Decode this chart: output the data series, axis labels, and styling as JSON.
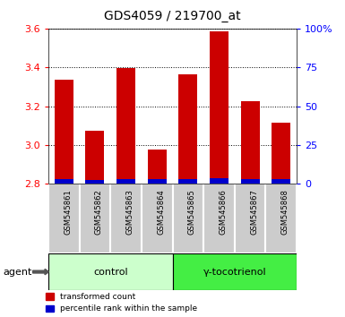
{
  "title": "GDS4059 / 219700_at",
  "samples": [
    "GSM545861",
    "GSM545862",
    "GSM545863",
    "GSM545864",
    "GSM545865",
    "GSM545866",
    "GSM545867",
    "GSM545868"
  ],
  "red_values": [
    3.335,
    3.075,
    3.395,
    2.975,
    3.365,
    3.585,
    3.225,
    3.115
  ],
  "blue_values": [
    0.025,
    0.022,
    0.025,
    0.025,
    0.025,
    0.03,
    0.025,
    0.025
  ],
  "ymin": 2.8,
  "ymax": 3.6,
  "yticks_left": [
    2.8,
    3.0,
    3.2,
    3.4,
    3.6
  ],
  "yticks_right": [
    0,
    25,
    50,
    75,
    100
  ],
  "bar_color_red": "#cc0000",
  "bar_color_blue": "#0000cc",
  "control_bg": "#ccffcc",
  "treatment_bg": "#44ee44",
  "sample_bg": "#cccccc",
  "group_labels": [
    "control",
    "γ-tocotrienol"
  ],
  "agent_label": "agent",
  "legend_red": "transformed count",
  "legend_blue": "percentile rank within the sample",
  "bar_width": 0.6,
  "n_control": 4,
  "n_treatment": 4
}
